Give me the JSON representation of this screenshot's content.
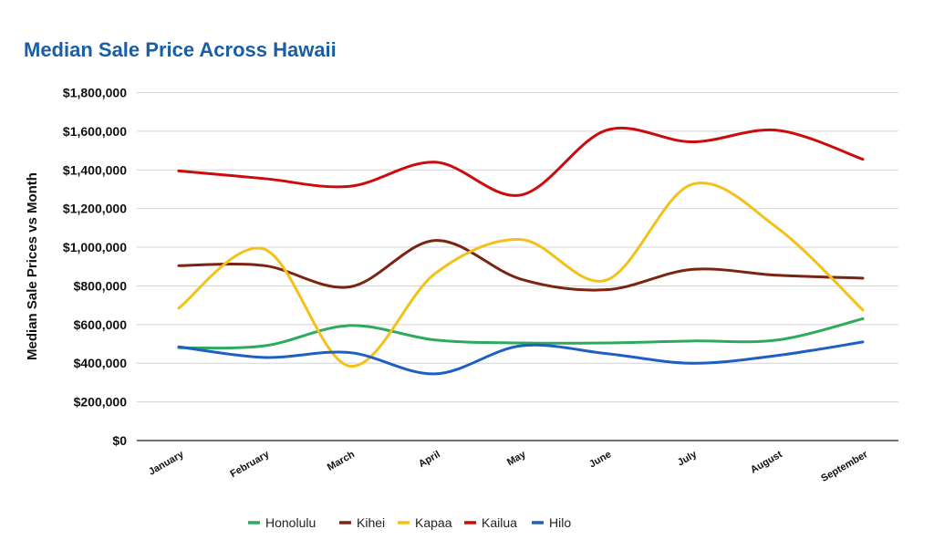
{
  "chart_data": {
    "type": "line",
    "title": "Median Sale Price Across Hawaii",
    "xlabel": "",
    "ylabel": "Median Sale Prices vs Month",
    "categories": [
      "January",
      "February",
      "March",
      "April",
      "May",
      "June",
      "July",
      "August",
      "September"
    ],
    "y_ticks": [
      "$0",
      "$200,000",
      "$400,000",
      "$600,000",
      "$800,000",
      "$1,000,000",
      "$1,200,000",
      "$1,400,000",
      "$1,600,000",
      "$1,800,000"
    ],
    "ylim": [
      0,
      1800000
    ],
    "grid": true,
    "smooth": true,
    "legend_position": "bottom",
    "series": [
      {
        "name": "Honolulu",
        "color": "#2eaa5c",
        "values": [
          480000,
          490000,
          595000,
          520000,
          505000,
          505000,
          515000,
          520000,
          630000
        ]
      },
      {
        "name": "Kihei",
        "color": "#7b2412",
        "values": [
          905000,
          905000,
          795000,
          1035000,
          835000,
          780000,
          885000,
          855000,
          840000
        ]
      },
      {
        "name": "Kapaa",
        "color": "#f4c01a",
        "values": [
          685000,
          990000,
          385000,
          865000,
          1040000,
          830000,
          1325000,
          1100000,
          675000
        ]
      },
      {
        "name": "Kailua",
        "color": "#cc0c0c",
        "values": [
          1395000,
          1355000,
          1315000,
          1440000,
          1270000,
          1605000,
          1545000,
          1605000,
          1455000
        ]
      },
      {
        "name": "Hilo",
        "color": "#1f5fc4",
        "values": [
          485000,
          430000,
          455000,
          345000,
          490000,
          450000,
          400000,
          440000,
          510000
        ]
      }
    ]
  }
}
